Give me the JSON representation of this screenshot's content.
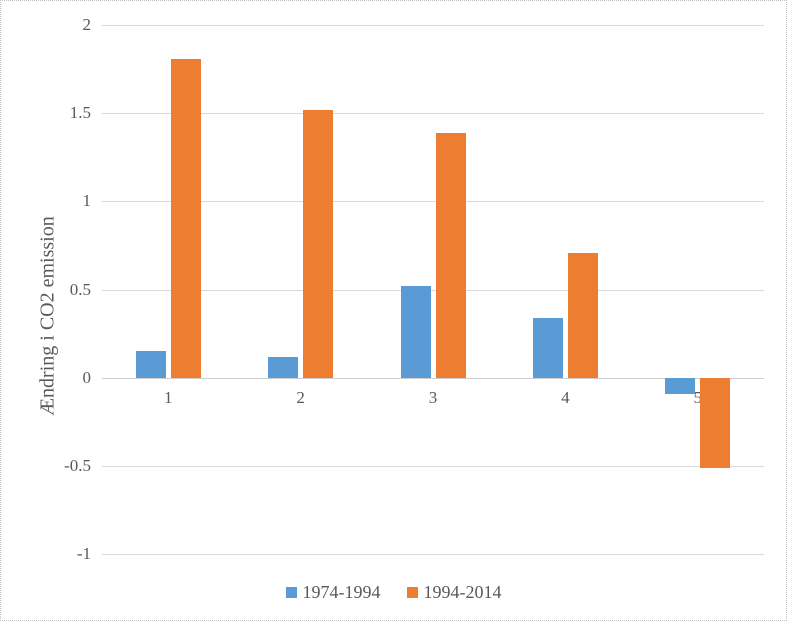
{
  "chart_data": {
    "type": "bar",
    "title": "",
    "xlabel": "",
    "ylabel": "Ændring i CO2 emission",
    "categories": [
      "1",
      "2",
      "3",
      "4",
      "5"
    ],
    "series": [
      {
        "name": "1974-1994",
        "color": "#5B9BD5",
        "values": [
          0.15,
          0.12,
          0.52,
          0.34,
          -0.09
        ]
      },
      {
        "name": "1994-2014",
        "color": "#ED7D31",
        "values": [
          1.81,
          1.52,
          1.39,
          0.71,
          -0.51
        ]
      }
    ],
    "ylim": [
      -1,
      2
    ],
    "yticks": [
      2,
      1.5,
      1,
      0.5,
      0,
      -0.5,
      -1
    ],
    "ytick_labels": [
      "2",
      "1.5",
      "1",
      "0.5",
      "0",
      "-0.5",
      "-1"
    ],
    "grid": true,
    "legend_position": "bottom",
    "colors": {
      "grid": "#D9D9D9",
      "axis_text": "#595959"
    }
  }
}
